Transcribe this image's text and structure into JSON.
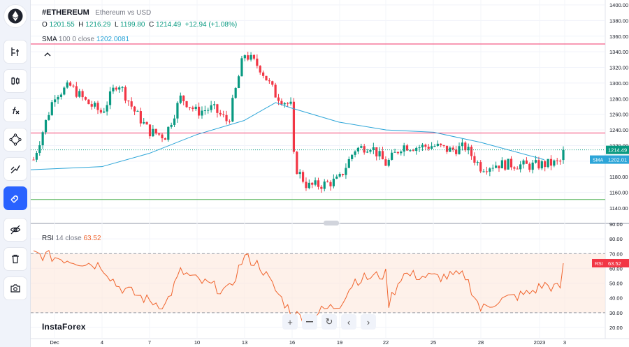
{
  "header": {
    "symbol": "#ETHEREUM",
    "description": "Ethereum vs USD",
    "ohlc": {
      "o_label": "O",
      "o_value": "1201.55",
      "h_label": "H",
      "h_value": "1216.29",
      "l_label": "L",
      "l_value": "1199.80",
      "c_label": "C",
      "c_value": "1214.49",
      "change": "+12.94 (+1.08%)"
    }
  },
  "indicators": {
    "sma": {
      "name": "SMA",
      "params": "100 0 close",
      "value": "1202.0081",
      "badge_label": "SMA",
      "badge_value": "1202.01"
    },
    "rsi": {
      "name": "RSI",
      "params": "14 close",
      "value": "63.52",
      "badge_label": "RSI",
      "badge_value": "63.52"
    }
  },
  "brand": "InstaForex",
  "toolbar": {
    "items": [
      "ethereum-logo",
      "chart-settings-icon",
      "candles-icon",
      "indicators-icon",
      "drawing-icon",
      "lines-icon",
      "magnet-icon",
      "eye-off-icon",
      "trash-icon",
      "camera-icon"
    ],
    "active_item": "magnet-icon"
  },
  "nav": {
    "zoom_in": "+",
    "reset": "↻",
    "back": "‹",
    "forward": "›"
  },
  "colors": {
    "up": "#089981",
    "down": "#f23645",
    "sma": "#2ca5d8",
    "rsi": "#f0642d",
    "resistance": "#f23669",
    "support": "#4caf50",
    "active": "#2962ff"
  },
  "chart_data": {
    "type": "candlestick",
    "price_axis": {
      "ticks": [
        "1400.00",
        "1380.00",
        "1360.00",
        "1340.00",
        "1320.00",
        "1300.00",
        "1280.00",
        "1260.00",
        "1240.00",
        "1220.00",
        "1200.00",
        "1180.00",
        "1160.00",
        "1140.00"
      ],
      "range": [
        1130,
        1400
      ]
    },
    "rsi_axis": {
      "ticks": [
        "90.00",
        "80.00",
        "70.00",
        "60.00",
        "50.00",
        "40.00",
        "30.00",
        "20.00"
      ],
      "range": [
        15,
        90
      ]
    },
    "time_axis": {
      "labels": [
        "Dec",
        "4",
        "7",
        "10",
        "13",
        "16",
        "19",
        "22",
        "25",
        "28",
        "2023",
        "3"
      ]
    },
    "last_price_label": "1214.49",
    "hlines": [
      1350,
      1236,
      1151
    ],
    "rsi_band": [
      30,
      70
    ],
    "key_points": [
      {
        "t": "Dec 1",
        "c": 1202
      },
      {
        "t": "Dec 1",
        "c": 1285
      },
      {
        "t": "Dec 2",
        "c": 1296
      },
      {
        "t": "Dec 3",
        "c": 1276
      },
      {
        "t": "Dec 4",
        "c": 1262
      },
      {
        "t": "Dec 5",
        "c": 1302
      },
      {
        "t": "Dec 6",
        "c": 1266
      },
      {
        "t": "Dec 7",
        "c": 1238
      },
      {
        "t": "Dec 8",
        "c": 1232
      },
      {
        "t": "Dec 9",
        "c": 1282
      },
      {
        "t": "Dec 10",
        "c": 1263
      },
      {
        "t": "Dec 11",
        "c": 1268
      },
      {
        "t": "Dec 12",
        "c": 1250
      },
      {
        "t": "Dec 13",
        "c": 1338
      },
      {
        "t": "Dec 14",
        "c": 1320
      },
      {
        "t": "Dec 15",
        "c": 1285
      },
      {
        "t": "Dec 16",
        "c": 1270
      },
      {
        "t": "Dec 16",
        "c": 1195
      },
      {
        "t": "Dec 17",
        "c": 1168
      },
      {
        "t": "Dec 18",
        "c": 1170
      },
      {
        "t": "Dec 19",
        "c": 1176
      },
      {
        "t": "Dec 20",
        "c": 1215
      },
      {
        "t": "Dec 21",
        "c": 1220
      },
      {
        "t": "Dec 22",
        "c": 1196
      },
      {
        "t": "Dec 23",
        "c": 1220
      },
      {
        "t": "Dec 24",
        "c": 1218
      },
      {
        "t": "Dec 25",
        "c": 1220
      },
      {
        "t": "Dec 26",
        "c": 1214
      },
      {
        "t": "Dec 27",
        "c": 1218
      },
      {
        "t": "Dec 28",
        "c": 1192
      },
      {
        "t": "Dec 29",
        "c": 1196
      },
      {
        "t": "Dec 30",
        "c": 1196
      },
      {
        "t": "Dec 31",
        "c": 1194
      },
      {
        "t": "Jan 1",
        "c": 1196
      },
      {
        "t": "Jan 2",
        "c": 1198
      },
      {
        "t": "Jan 3",
        "c": 1214.49
      }
    ],
    "sma_points": [
      {
        "t": "Dec 1",
        "v": 1189
      },
      {
        "t": "Dec 4",
        "v": 1193
      },
      {
        "t": "Dec 7",
        "v": 1210
      },
      {
        "t": "Dec 10",
        "v": 1234
      },
      {
        "t": "Dec 13",
        "v": 1252
      },
      {
        "t": "Dec 15",
        "v": 1275
      },
      {
        "t": "Dec 16",
        "v": 1268
      },
      {
        "t": "Dec 19",
        "v": 1250
      },
      {
        "t": "Dec 22",
        "v": 1240
      },
      {
        "t": "Dec 25",
        "v": 1237
      },
      {
        "t": "Dec 28",
        "v": 1224
      },
      {
        "t": "Jan 1",
        "v": 1202
      }
    ],
    "rsi_points": [
      {
        "t": "Dec 1",
        "v": 70
      },
      {
        "t": "Dec 4",
        "v": 62
      },
      {
        "t": "Dec 5",
        "v": 48
      },
      {
        "t": "Dec 7",
        "v": 38
      },
      {
        "t": "Dec 8",
        "v": 35
      },
      {
        "t": "Dec 9",
        "v": 58
      },
      {
        "t": "Dec 10",
        "v": 52
      },
      {
        "t": "Dec 12",
        "v": 44
      },
      {
        "t": "Dec 13",
        "v": 68
      },
      {
        "t": "Dec 14",
        "v": 62
      },
      {
        "t": "Dec 15",
        "v": 45
      },
      {
        "t": "Dec 16",
        "v": 30
      },
      {
        "t": "Dec 17",
        "v": 25
      },
      {
        "t": "Dec 18",
        "v": 32
      },
      {
        "t": "Dec 19",
        "v": 35
      },
      {
        "t": "Dec 20",
        "v": 52
      },
      {
        "t": "Dec 22",
        "v": 56
      },
      {
        "t": "Dec 22",
        "v": 36
      },
      {
        "t": "Dec 23",
        "v": 56
      },
      {
        "t": "Dec 25",
        "v": 54
      },
      {
        "t": "Dec 27",
        "v": 55
      },
      {
        "t": "Dec 28",
        "v": 32
      },
      {
        "t": "Dec 29",
        "v": 38
      },
      {
        "t": "Dec 31",
        "v": 43
      },
      {
        "t": "Jan 1",
        "v": 49
      },
      {
        "t": "Jan 2",
        "v": 46
      },
      {
        "t": "Jan 3",
        "v": 63.52
      }
    ]
  }
}
